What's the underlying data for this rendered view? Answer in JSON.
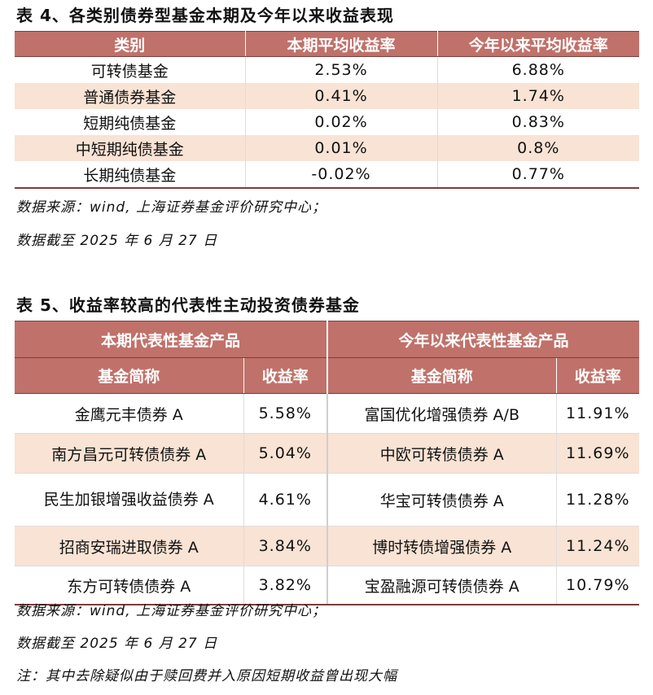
{
  "table4": {
    "title": "表 4、各类别债券型基金本期及今年以来收益表现",
    "headers": [
      "类别",
      "本期平均收益率",
      "今年以来平均收益率"
    ],
    "rows": [
      [
        "可转债基金",
        "2.53%",
        "6.88%"
      ],
      [
        "普通债券基金",
        "0.41%",
        "1.74%"
      ],
      [
        "短期纯债基金",
        "0.02%",
        "0.83%"
      ],
      [
        "中短期纯债基金",
        "0.01%",
        "0.8%"
      ],
      [
        "长期纯债基金",
        "-0.02%",
        "0.77%"
      ]
    ],
    "source": "数据来源：wind, 上海证券基金评价研究中心；",
    "date": "数据截至 2025 年 6 月 27 日"
  },
  "table5": {
    "title": "表 5、收益率较高的代表性主动投资债券基金",
    "group_headers": [
      "本期代表性基金产品",
      "今年以来代表性基金产品"
    ],
    "sub_headers": [
      "基金简称",
      "收益率",
      "基金简称",
      "收益率"
    ],
    "rows": [
      [
        "金鹰元丰债券 A",
        "5.58%",
        "富国优化增强债券 A/B",
        "11.91%"
      ],
      [
        "南方昌元可转债债券 A",
        "5.04%",
        "中欧可转债债券 A",
        "11.69%"
      ],
      [
        "民生加银增强收益债券 A",
        "4.61%",
        "华宝可转债债券 A",
        "11.28%"
      ],
      [
        "招商安瑞进取债券 A",
        "3.84%",
        "博时转债增强债券 A",
        "11.24%"
      ],
      [
        "东方可转债债券 A",
        "3.82%",
        "宝盈融源可转债债券 A",
        "10.79%"
      ]
    ],
    "source": "数据来源：wind, 上海证券基金评价研究中心；",
    "date": "数据截至 2025 年 6 月 27 日",
    "footnote": "注：其中去除疑似由于赎回费并入原因短期收益曾出现大幅"
  },
  "colors": {
    "header_bg": "#c0716a",
    "alt_row_bg": "#f9e3d4",
    "border_dark": "#7a3e3a"
  }
}
